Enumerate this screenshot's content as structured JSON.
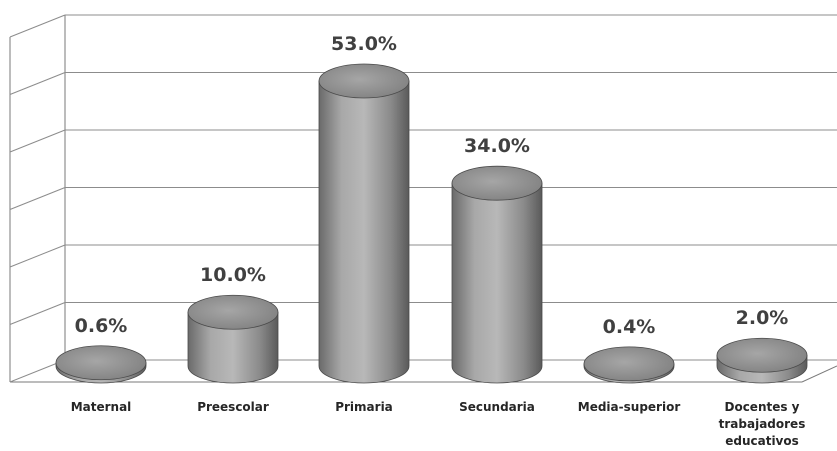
{
  "chart_data": {
    "type": "bar",
    "style": "3d-cylinder",
    "categories": [
      "Maternal",
      "Preescolar",
      "Primaria",
      "Secundaria",
      "Media-superior",
      "Docentes y trabajadores educativos"
    ],
    "category_lines": [
      [
        "Maternal"
      ],
      [
        "Preescolar"
      ],
      [
        "Primaria"
      ],
      [
        "Secundaria"
      ],
      [
        "Media-superior"
      ],
      [
        "Docentes y",
        "trabajadores",
        "educativos"
      ]
    ],
    "values": [
      0.6,
      10.0,
      53.0,
      34.0,
      0.4,
      2.0
    ],
    "value_labels": [
      "0.6%",
      "10.0%",
      "53.0%",
      "34.0%",
      "0.4%",
      "2.0%"
    ],
    "ylim": [
      0,
      60
    ],
    "grid": true,
    "legend": "none",
    "colors": {
      "bar_light": "#b4b4b4",
      "bar_mid": "#8f8f8f",
      "bar_dark": "#5e5e5e",
      "bar_top": "#9a9a9a",
      "grid": "#8c8c8c"
    }
  }
}
